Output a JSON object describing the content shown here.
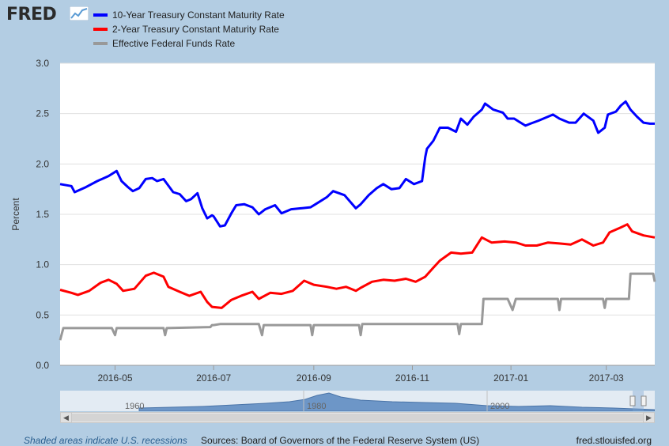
{
  "brand": {
    "name": "FRED"
  },
  "legend": [
    {
      "label": "10-Year Treasury Constant Maturity Rate",
      "color": "#0000ff"
    },
    {
      "label": "2-Year Treasury Constant Maturity Rate",
      "color": "#ff0000"
    },
    {
      "label": "Effective Federal Funds Rate",
      "color": "#999999"
    }
  ],
  "footer": {
    "recession_note": "Shaded areas indicate U.S. recessions",
    "sources": "Sources: Board of Governors of the Federal Reserve System (US)",
    "site": "fred.stlouisfed.org"
  },
  "navigator": {
    "labels": [
      "1960",
      "1980",
      "2000"
    ]
  },
  "chart_data": {
    "type": "line",
    "ylabel": "Percent",
    "ylim": [
      0,
      3
    ],
    "yticks": [
      "0.0",
      "0.5",
      "1.0",
      "1.5",
      "2.0",
      "2.5",
      "3.0"
    ],
    "xlim": [
      "2016-03-28",
      "2017-03-31"
    ],
    "xticks": [
      {
        "date": "2016-05-01",
        "label": "2016-05"
      },
      {
        "date": "2016-07-01",
        "label": "2016-07"
      },
      {
        "date": "2016-09-01",
        "label": "2016-09"
      },
      {
        "date": "2016-11-01",
        "label": "2016-11"
      },
      {
        "date": "2017-01-01",
        "label": "2017-01"
      },
      {
        "date": "2017-03-01",
        "label": "2017-03"
      }
    ],
    "grid": true,
    "series": [
      {
        "name": "10-Year Treasury Constant Maturity Rate",
        "color": "#0000ff",
        "points": [
          [
            "2016-03-28",
            1.8
          ],
          [
            "2016-04-04",
            1.78
          ],
          [
            "2016-04-06",
            1.72
          ],
          [
            "2016-04-13",
            1.77
          ],
          [
            "2016-04-20",
            1.83
          ],
          [
            "2016-04-27",
            1.88
          ],
          [
            "2016-05-02",
            1.93
          ],
          [
            "2016-05-05",
            1.83
          ],
          [
            "2016-05-09",
            1.77
          ],
          [
            "2016-05-12",
            1.73
          ],
          [
            "2016-05-16",
            1.76
          ],
          [
            "2016-05-20",
            1.85
          ],
          [
            "2016-05-24",
            1.86
          ],
          [
            "2016-05-27",
            1.83
          ],
          [
            "2016-05-31",
            1.85
          ],
          [
            "2016-06-06",
            1.72
          ],
          [
            "2016-06-10",
            1.7
          ],
          [
            "2016-06-14",
            1.63
          ],
          [
            "2016-06-17",
            1.65
          ],
          [
            "2016-06-21",
            1.71
          ],
          [
            "2016-06-24",
            1.56
          ],
          [
            "2016-06-27",
            1.46
          ],
          [
            "2016-06-30",
            1.49
          ],
          [
            "2016-07-01",
            1.48
          ],
          [
            "2016-07-05",
            1.38
          ],
          [
            "2016-07-08",
            1.39
          ],
          [
            "2016-07-12",
            1.51
          ],
          [
            "2016-07-15",
            1.59
          ],
          [
            "2016-07-20",
            1.6
          ],
          [
            "2016-07-25",
            1.57
          ],
          [
            "2016-07-29",
            1.5
          ],
          [
            "2016-08-02",
            1.55
          ],
          [
            "2016-08-08",
            1.59
          ],
          [
            "2016-08-12",
            1.51
          ],
          [
            "2016-08-18",
            1.55
          ],
          [
            "2016-08-24",
            1.56
          ],
          [
            "2016-08-30",
            1.57
          ],
          [
            "2016-09-02",
            1.6
          ],
          [
            "2016-09-09",
            1.67
          ],
          [
            "2016-09-13",
            1.73
          ],
          [
            "2016-09-20",
            1.69
          ],
          [
            "2016-09-27",
            1.56
          ],
          [
            "2016-09-30",
            1.6
          ],
          [
            "2016-10-05",
            1.69
          ],
          [
            "2016-10-10",
            1.76
          ],
          [
            "2016-10-14",
            1.8
          ],
          [
            "2016-10-19",
            1.75
          ],
          [
            "2016-10-24",
            1.76
          ],
          [
            "2016-10-28",
            1.85
          ],
          [
            "2016-11-02",
            1.8
          ],
          [
            "2016-11-07",
            1.83
          ],
          [
            "2016-11-09",
            2.07
          ],
          [
            "2016-11-10",
            2.15
          ],
          [
            "2016-11-14",
            2.23
          ],
          [
            "2016-11-18",
            2.36
          ],
          [
            "2016-11-23",
            2.36
          ],
          [
            "2016-11-28",
            2.32
          ],
          [
            "2016-12-01",
            2.45
          ],
          [
            "2016-12-05",
            2.39
          ],
          [
            "2016-12-09",
            2.47
          ],
          [
            "2016-12-14",
            2.54
          ],
          [
            "2016-12-16",
            2.6
          ],
          [
            "2016-12-21",
            2.54
          ],
          [
            "2016-12-27",
            2.51
          ],
          [
            "2016-12-30",
            2.45
          ],
          [
            "2017-01-03",
            2.45
          ],
          [
            "2017-01-06",
            2.42
          ],
          [
            "2017-01-10",
            2.38
          ],
          [
            "2017-01-13",
            2.4
          ],
          [
            "2017-01-18",
            2.43
          ],
          [
            "2017-01-24",
            2.47
          ],
          [
            "2017-01-27",
            2.49
          ],
          [
            "2017-01-31",
            2.45
          ],
          [
            "2017-02-06",
            2.41
          ],
          [
            "2017-02-10",
            2.41
          ],
          [
            "2017-02-15",
            2.5
          ],
          [
            "2017-02-21",
            2.43
          ],
          [
            "2017-02-24",
            2.31
          ],
          [
            "2017-02-28",
            2.36
          ],
          [
            "2017-03-02",
            2.49
          ],
          [
            "2017-03-07",
            2.52
          ],
          [
            "2017-03-10",
            2.58
          ],
          [
            "2017-03-13",
            2.62
          ],
          [
            "2017-03-16",
            2.54
          ],
          [
            "2017-03-20",
            2.47
          ],
          [
            "2017-03-24",
            2.41
          ],
          [
            "2017-03-28",
            2.4
          ],
          [
            "2017-03-31",
            2.4
          ]
        ]
      },
      {
        "name": "2-Year Treasury Constant Maturity Rate",
        "color": "#ff0000",
        "points": [
          [
            "2016-03-28",
            0.75
          ],
          [
            "2016-04-04",
            0.72
          ],
          [
            "2016-04-08",
            0.7
          ],
          [
            "2016-04-15",
            0.74
          ],
          [
            "2016-04-22",
            0.82
          ],
          [
            "2016-04-27",
            0.85
          ],
          [
            "2016-05-02",
            0.81
          ],
          [
            "2016-05-06",
            0.74
          ],
          [
            "2016-05-13",
            0.76
          ],
          [
            "2016-05-20",
            0.89
          ],
          [
            "2016-05-25",
            0.92
          ],
          [
            "2016-05-31",
            0.88
          ],
          [
            "2016-06-03",
            0.78
          ],
          [
            "2016-06-10",
            0.73
          ],
          [
            "2016-06-16",
            0.69
          ],
          [
            "2016-06-23",
            0.73
          ],
          [
            "2016-06-27",
            0.63
          ],
          [
            "2016-06-30",
            0.58
          ],
          [
            "2016-07-06",
            0.57
          ],
          [
            "2016-07-12",
            0.65
          ],
          [
            "2016-07-18",
            0.69
          ],
          [
            "2016-07-25",
            0.73
          ],
          [
            "2016-07-29",
            0.66
          ],
          [
            "2016-08-05",
            0.72
          ],
          [
            "2016-08-12",
            0.71
          ],
          [
            "2016-08-19",
            0.74
          ],
          [
            "2016-08-26",
            0.84
          ],
          [
            "2016-09-01",
            0.8
          ],
          [
            "2016-09-09",
            0.78
          ],
          [
            "2016-09-15",
            0.76
          ],
          [
            "2016-09-21",
            0.78
          ],
          [
            "2016-09-27",
            0.74
          ],
          [
            "2016-09-30",
            0.77
          ],
          [
            "2016-10-07",
            0.83
          ],
          [
            "2016-10-14",
            0.85
          ],
          [
            "2016-10-21",
            0.84
          ],
          [
            "2016-10-28",
            0.86
          ],
          [
            "2016-11-03",
            0.83
          ],
          [
            "2016-11-09",
            0.88
          ],
          [
            "2016-11-14",
            0.97
          ],
          [
            "2016-11-18",
            1.04
          ],
          [
            "2016-11-25",
            1.12
          ],
          [
            "2016-12-01",
            1.11
          ],
          [
            "2016-12-08",
            1.12
          ],
          [
            "2016-12-14",
            1.27
          ],
          [
            "2016-12-20",
            1.22
          ],
          [
            "2016-12-28",
            1.23
          ],
          [
            "2017-01-04",
            1.22
          ],
          [
            "2017-01-10",
            1.19
          ],
          [
            "2017-01-17",
            1.19
          ],
          [
            "2017-01-24",
            1.22
          ],
          [
            "2017-01-31",
            1.21
          ],
          [
            "2017-02-07",
            1.2
          ],
          [
            "2017-02-14",
            1.25
          ],
          [
            "2017-02-21",
            1.19
          ],
          [
            "2017-02-27",
            1.22
          ],
          [
            "2017-03-03",
            1.32
          ],
          [
            "2017-03-10",
            1.37
          ],
          [
            "2017-03-14",
            1.4
          ],
          [
            "2017-03-17",
            1.33
          ],
          [
            "2017-03-24",
            1.29
          ],
          [
            "2017-03-31",
            1.27
          ]
        ]
      },
      {
        "name": "Effective Federal Funds Rate",
        "color": "#999999",
        "points": [
          [
            "2016-03-28",
            0.25
          ],
          [
            "2016-03-30",
            0.37
          ],
          [
            "2016-04-29",
            0.37
          ],
          [
            "2016-05-01",
            0.3
          ],
          [
            "2016-05-02",
            0.37
          ],
          [
            "2016-05-31",
            0.37
          ],
          [
            "2016-06-01",
            0.3
          ],
          [
            "2016-06-02",
            0.37
          ],
          [
            "2016-06-29",
            0.38
          ],
          [
            "2016-06-30",
            0.4
          ],
          [
            "2016-07-01",
            0.4
          ],
          [
            "2016-07-05",
            0.41
          ],
          [
            "2016-07-29",
            0.41
          ],
          [
            "2016-07-31",
            0.3
          ],
          [
            "2016-08-01",
            0.4
          ],
          [
            "2016-08-30",
            0.4
          ],
          [
            "2016-08-31",
            0.3
          ],
          [
            "2016-09-01",
            0.4
          ],
          [
            "2016-09-29",
            0.4
          ],
          [
            "2016-09-30",
            0.3
          ],
          [
            "2016-10-01",
            0.41
          ],
          [
            "2016-10-31",
            0.41
          ],
          [
            "2016-11-01",
            0.41
          ],
          [
            "2016-11-29",
            0.41
          ],
          [
            "2016-11-30",
            0.31
          ],
          [
            "2016-12-01",
            0.41
          ],
          [
            "2016-12-14",
            0.41
          ],
          [
            "2016-12-15",
            0.66
          ],
          [
            "2016-12-30",
            0.66
          ],
          [
            "2017-01-02",
            0.55
          ],
          [
            "2017-01-04",
            0.66
          ],
          [
            "2017-01-30",
            0.66
          ],
          [
            "2017-01-31",
            0.55
          ],
          [
            "2017-02-01",
            0.66
          ],
          [
            "2017-02-27",
            0.66
          ],
          [
            "2017-02-28",
            0.57
          ],
          [
            "2017-03-01",
            0.66
          ],
          [
            "2017-03-15",
            0.66
          ],
          [
            "2017-03-16",
            0.91
          ],
          [
            "2017-03-30",
            0.91
          ],
          [
            "2017-03-31",
            0.83
          ]
        ]
      }
    ]
  }
}
